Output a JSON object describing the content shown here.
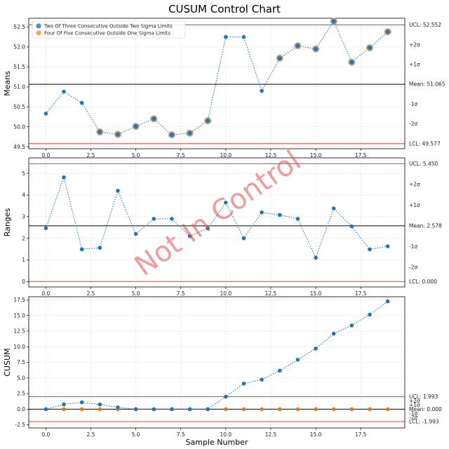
{
  "chart_data": [
    {
      "type": "scatter",
      "title": "CUSUM Control Chart",
      "ylabel": "Means",
      "xlabel": "",
      "xlim": [
        -0.95,
        19.95
      ],
      "ylim": [
        49.45,
        52.72
      ],
      "xticks": [
        "0.0",
        "2.5",
        "5.0",
        "7.5",
        "10.0",
        "12.5",
        "15.0",
        "17.5"
      ],
      "yticks": [
        "49.5",
        "50.0",
        "50.5",
        "51.0",
        "51.5",
        "52.0",
        "52.5"
      ],
      "grid": true,
      "legend": {
        "position": "top-left",
        "entries": [
          {
            "label": "Two Of Three Consecutive Outside Two Sigma Limits",
            "color": "#4c8fd6"
          },
          {
            "label": "Four Of Five Consecutive Outside One Sigma Limits",
            "color": "#f5a55a"
          }
        ]
      },
      "x": [
        0,
        1,
        2,
        3,
        4,
        5,
        6,
        7,
        8,
        9,
        10,
        11,
        12,
        13,
        14,
        15,
        16,
        17,
        18,
        19
      ],
      "values": [
        50.33,
        50.88,
        50.6,
        49.87,
        49.81,
        50.01,
        50.2,
        49.8,
        49.84,
        50.15,
        52.25,
        52.25,
        50.9,
        51.72,
        52.03,
        51.95,
        52.64,
        51.62,
        51.98,
        52.38
      ],
      "flag_two_of_three": [
        3,
        4,
        5,
        6,
        7,
        8,
        9,
        13,
        14,
        15,
        16,
        17,
        18,
        19
      ],
      "flag_four_of_five": [
        3,
        4,
        5,
        6,
        7,
        8,
        9,
        13,
        14,
        15,
        16,
        17,
        18,
        19
      ],
      "limits": {
        "ucl": {
          "value": 52.552,
          "label": "UCL: 52.552"
        },
        "mean": {
          "value": 51.065,
          "label": "Mean: 51.065"
        },
        "lcl": {
          "value": 49.577,
          "label": "LCL: 49.577"
        }
      },
      "sigma_labels": [
        {
          "value": 52.056,
          "label": "+2σ"
        },
        {
          "value": 51.561,
          "label": "+1σ"
        },
        {
          "value": 50.569,
          "label": "-1σ"
        },
        {
          "value": 50.073,
          "label": "-2σ"
        }
      ]
    },
    {
      "type": "scatter",
      "title": "",
      "ylabel": "Ranges",
      "xlabel": "",
      "xlim": [
        -0.95,
        19.95
      ],
      "ylim": [
        -0.25,
        5.72
      ],
      "xticks": [
        "0.0",
        "2.5",
        "5.0",
        "7.5",
        "10.0",
        "12.5",
        "15.0",
        "17.5"
      ],
      "yticks": [
        "0",
        "1",
        "2",
        "3",
        "4",
        "5"
      ],
      "grid": true,
      "x": [
        0,
        1,
        2,
        3,
        4,
        5,
        6,
        7,
        8,
        9,
        10,
        11,
        12,
        13,
        14,
        15,
        16,
        17,
        18,
        19
      ],
      "values": [
        2.47,
        4.82,
        1.49,
        1.56,
        4.2,
        2.2,
        2.9,
        2.9,
        2.1,
        2.46,
        3.65,
        2.0,
        3.2,
        3.08,
        2.9,
        1.1,
        3.38,
        2.55,
        1.49,
        1.63
      ],
      "limits": {
        "ucl": {
          "value": 5.45,
          "label": "UCL: 5.450"
        },
        "mean": {
          "value": 2.578,
          "label": "Mean: 2.578"
        },
        "lcl": {
          "value": 0.0,
          "label": "LCL: 0.000"
        }
      },
      "sigma_labels": [
        {
          "value": 4.493,
          "label": "+2σ"
        },
        {
          "value": 3.536,
          "label": "+1σ"
        },
        {
          "value": 1.62,
          "label": "-1σ"
        },
        {
          "value": 0.663,
          "label": "-2σ"
        }
      ],
      "annotation": "Not In Control"
    },
    {
      "type": "scatter",
      "title": "",
      "ylabel": "CUSUM",
      "xlabel": "Sample Number",
      "xlim": [
        -0.95,
        19.95
      ],
      "ylim": [
        -3.0,
        18.0
      ],
      "xticks": [
        "0.0",
        "2.5",
        "5.0",
        "7.5",
        "10.0",
        "12.5",
        "15.0",
        "17.5"
      ],
      "yticks": [
        "-2.5",
        "0.0",
        "2.5",
        "5.0",
        "7.5",
        "10.0",
        "12.5",
        "15.0",
        "17.5"
      ],
      "grid": true,
      "x": [
        0,
        1,
        2,
        3,
        4,
        5,
        6,
        7,
        8,
        9,
        10,
        11,
        12,
        13,
        14,
        15,
        16,
        17,
        18,
        19
      ],
      "series": [
        {
          "values": [
            0,
            0.78,
            1.1,
            0.76,
            0.3,
            0,
            0,
            0,
            0,
            0,
            2.0,
            4.1,
            4.73,
            6.17,
            7.92,
            9.71,
            12.1,
            13.41,
            15.14,
            17.26
          ],
          "color": "#1f77b4"
        },
        {
          "values": [
            0,
            0,
            0,
            0,
            0,
            0,
            0,
            0,
            0,
            0,
            0,
            0,
            0,
            0,
            0,
            0,
            0,
            0,
            0,
            0
          ],
          "color": "#e07b1a"
        }
      ],
      "limits": {
        "ucl": {
          "value": 1.993,
          "label": "UCL: 1.993"
        },
        "mean": {
          "value": 0.0,
          "label": "Mean: 0.000"
        },
        "lcl": {
          "value": -1.993,
          "label": "LCL: -1.993"
        }
      },
      "sigma_labels": [
        {
          "value": 1.329,
          "label": "+2σ"
        },
        {
          "value": 0.664,
          "label": "+1σ"
        },
        {
          "value": -0.664,
          "label": "-1σ"
        },
        {
          "value": -1.329,
          "label": "-2σ"
        }
      ]
    }
  ],
  "colors": {
    "points": "#1f77b4",
    "line": "#1f77b4",
    "limit_line": "#e8393b",
    "mean_line": "#000000",
    "flag_two_of_three": "#4c8fd6",
    "flag_four_of_five": "#f5a55a",
    "zero_series": "#e07b1a"
  }
}
